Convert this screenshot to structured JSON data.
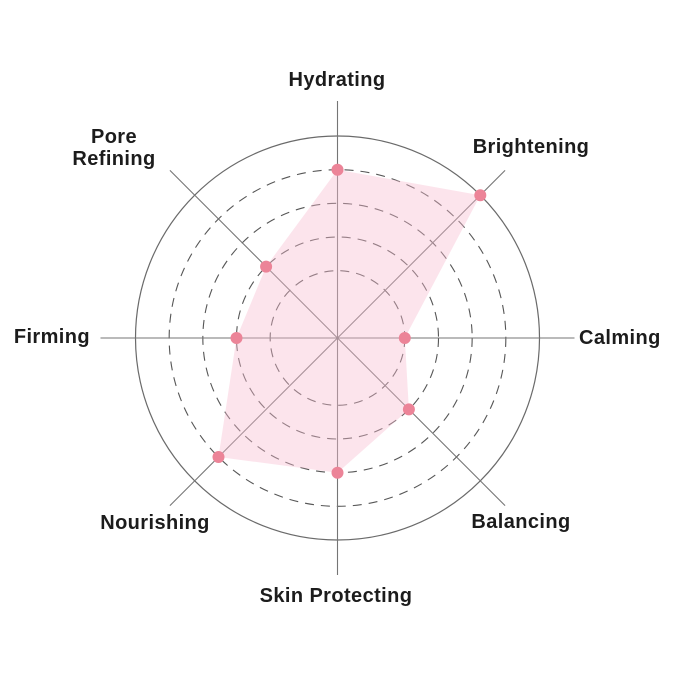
{
  "chart_data": {
    "type": "radar",
    "title": "",
    "categories": [
      "Hydrating",
      "Brightening",
      "Calming",
      "Balancing",
      "Skin Protecting",
      "Nourishing",
      "Firming",
      "Pore Refining"
    ],
    "values": [
      5,
      6,
      2,
      3,
      4,
      5,
      3,
      3
    ],
    "value_min": 0,
    "value_max": 6,
    "rings": [
      2,
      3,
      4,
      5,
      6
    ],
    "ring_style": "inner rings dashed, outermost ring solid",
    "start_axis": "top",
    "direction": "clockwise",
    "legend": "none",
    "grid": "circular",
    "colors": {
      "fill": "#F8BBD0",
      "fill_opacity": 0.4,
      "marker": "#EC8498",
      "ring_line": "#565656",
      "outer_ring_line": "#6a6a6a",
      "axis_line": "#757575",
      "label_text": "#1c1c1c",
      "background": "#FFFFFF"
    }
  }
}
